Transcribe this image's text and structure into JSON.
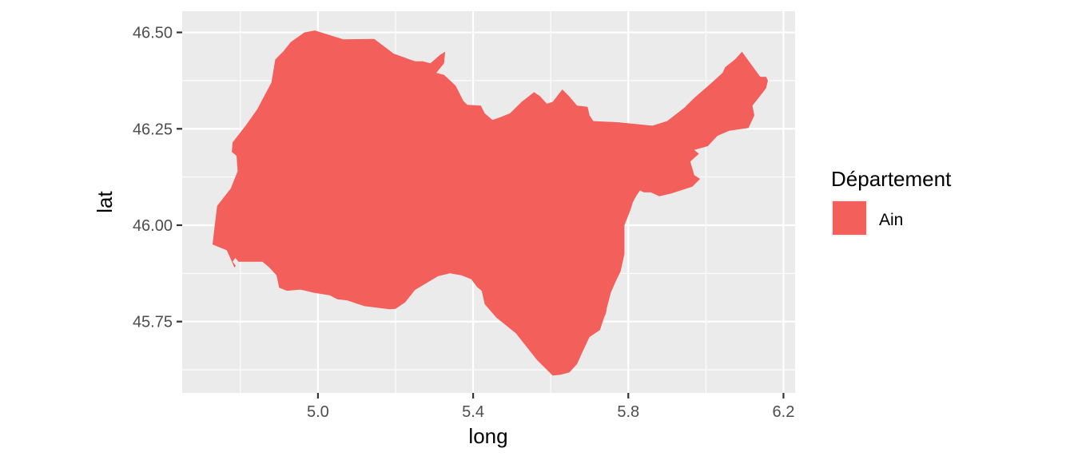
{
  "chart_data": {
    "type": "area",
    "xlabel": "long",
    "ylabel": "lat",
    "xlim": [
      4.65,
      6.23
    ],
    "ylim": [
      45.565,
      46.555
    ],
    "x_ticks": [
      {
        "value": 5.0,
        "label": "5.0"
      },
      {
        "value": 5.4,
        "label": "5.4"
      },
      {
        "value": 5.8,
        "label": "5.8"
      },
      {
        "value": 6.2,
        "label": "6.2"
      }
    ],
    "x_minor": [
      4.8,
      5.2,
      5.6,
      6.0
    ],
    "y_ticks": [
      {
        "value": 45.75,
        "label": "45.75"
      },
      {
        "value": 46.0,
        "label": "46.00"
      },
      {
        "value": 46.25,
        "label": "46.25"
      },
      {
        "value": 46.5,
        "label": "46.50"
      }
    ],
    "y_minor": [
      45.625,
      45.875,
      46.125,
      46.375
    ],
    "grid": true,
    "legend": {
      "title": "Département",
      "position": "right",
      "entries": [
        {
          "label": "Ain",
          "color": "#F35F5B"
        }
      ]
    },
    "colors": {
      "panel": "#EBEBEB",
      "grid": "#FFFFFF",
      "fill": "#F35F5B"
    },
    "series": [
      {
        "name": "Ain",
        "points": [
          [
            4.728,
            45.95
          ],
          [
            4.74,
            46.05
          ],
          [
            4.775,
            46.095
          ],
          [
            4.793,
            46.14
          ],
          [
            4.79,
            46.18
          ],
          [
            4.778,
            46.19
          ],
          [
            4.78,
            46.215
          ],
          [
            4.815,
            46.26
          ],
          [
            4.843,
            46.3
          ],
          [
            4.88,
            46.37
          ],
          [
            4.89,
            46.43
          ],
          [
            4.91,
            46.45
          ],
          [
            4.93,
            46.475
          ],
          [
            4.965,
            46.5
          ],
          [
            4.992,
            46.505
          ],
          [
            5.065,
            46.482
          ],
          [
            5.145,
            46.483
          ],
          [
            5.195,
            46.445
          ],
          [
            5.25,
            46.425
          ],
          [
            5.27,
            46.425
          ],
          [
            5.29,
            46.42
          ],
          [
            5.315,
            46.442
          ],
          [
            5.328,
            46.45
          ],
          [
            5.325,
            46.42
          ],
          [
            5.305,
            46.395
          ],
          [
            5.325,
            46.39
          ],
          [
            5.355,
            46.362
          ],
          [
            5.375,
            46.322
          ],
          [
            5.385,
            46.312
          ],
          [
            5.42,
            46.31
          ],
          [
            5.43,
            46.29
          ],
          [
            5.45,
            46.273
          ],
          [
            5.47,
            46.28
          ],
          [
            5.495,
            46.29
          ],
          [
            5.525,
            46.32
          ],
          [
            5.557,
            46.345
          ],
          [
            5.572,
            46.335
          ],
          [
            5.59,
            46.315
          ],
          [
            5.605,
            46.32
          ],
          [
            5.63,
            46.352
          ],
          [
            5.647,
            46.335
          ],
          [
            5.668,
            46.31
          ],
          [
            5.695,
            46.307
          ],
          [
            5.7,
            46.285
          ],
          [
            5.71,
            46.27
          ],
          [
            5.775,
            46.267
          ],
          [
            5.862,
            46.258
          ],
          [
            5.9,
            46.27
          ],
          [
            5.945,
            46.305
          ],
          [
            5.97,
            46.33
          ],
          [
            6.01,
            46.365
          ],
          [
            6.043,
            46.395
          ],
          [
            6.05,
            46.41
          ],
          [
            6.075,
            46.43
          ],
          [
            6.093,
            46.45
          ],
          [
            6.14,
            46.385
          ],
          [
            6.155,
            46.385
          ],
          [
            6.16,
            46.375
          ],
          [
            6.155,
            46.355
          ],
          [
            6.12,
            46.31
          ],
          [
            6.125,
            46.285
          ],
          [
            6.11,
            46.252
          ],
          [
            6.06,
            46.245
          ],
          [
            6.03,
            46.232
          ],
          [
            6.005,
            46.205
          ],
          [
            5.97,
            46.195
          ],
          [
            5.982,
            46.185
          ],
          [
            5.96,
            46.165
          ],
          [
            5.97,
            46.13
          ],
          [
            5.985,
            46.12
          ],
          [
            5.965,
            46.1
          ],
          [
            5.91,
            46.082
          ],
          [
            5.88,
            46.075
          ],
          [
            5.858,
            46.085
          ],
          [
            5.84,
            46.085
          ],
          [
            5.83,
            46.09
          ],
          [
            5.82,
            46.075
          ],
          [
            5.812,
            46.06
          ],
          [
            5.805,
            46.038
          ],
          [
            5.79,
            46.0
          ],
          [
            5.79,
            45.925
          ],
          [
            5.78,
            45.88
          ],
          [
            5.768,
            45.855
          ],
          [
            5.755,
            45.825
          ],
          [
            5.745,
            45.787
          ],
          [
            5.742,
            45.77
          ],
          [
            5.738,
            45.762
          ],
          [
            5.727,
            45.728
          ],
          [
            5.7,
            45.71
          ],
          [
            5.68,
            45.667
          ],
          [
            5.668,
            45.64
          ],
          [
            5.648,
            45.618
          ],
          [
            5.625,
            45.612
          ],
          [
            5.605,
            45.61
          ],
          [
            5.565,
            45.65
          ],
          [
            5.51,
            45.72
          ],
          [
            5.46,
            45.76
          ],
          [
            5.43,
            45.795
          ],
          [
            5.422,
            45.83
          ],
          [
            5.41,
            45.84
          ],
          [
            5.395,
            45.86
          ],
          [
            5.37,
            45.87
          ],
          [
            5.34,
            45.875
          ],
          [
            5.31,
            45.868
          ],
          [
            5.28,
            45.85
          ],
          [
            5.25,
            45.832
          ],
          [
            5.225,
            45.8
          ],
          [
            5.2,
            45.783
          ],
          [
            5.185,
            45.782
          ],
          [
            5.12,
            45.79
          ],
          [
            5.075,
            45.805
          ],
          [
            5.05,
            45.808
          ],
          [
            5.03,
            45.818
          ],
          [
            4.988,
            45.825
          ],
          [
            4.955,
            45.833
          ],
          [
            4.92,
            45.83
          ],
          [
            4.9,
            45.838
          ],
          [
            4.893,
            45.87
          ],
          [
            4.875,
            45.89
          ],
          [
            4.857,
            45.905
          ],
          [
            4.795,
            45.905
          ],
          [
            4.787,
            45.915
          ],
          [
            4.78,
            45.905
          ],
          [
            4.788,
            45.895
          ],
          [
            4.785,
            45.89
          ],
          [
            4.765,
            45.935
          ]
        ]
      }
    ]
  }
}
